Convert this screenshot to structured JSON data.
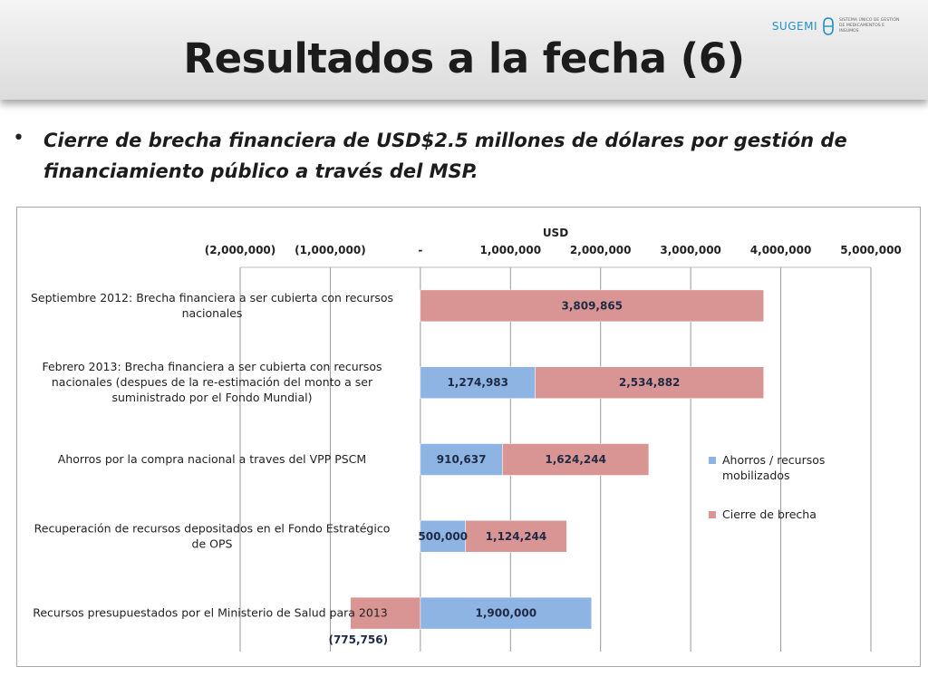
{
  "slide": {
    "title": "Resultados a la fecha (6)",
    "bullet": "Cierre de brecha financiera de USD$2.5 millones de dólares por gestión de financiamiento público a través del MSP."
  },
  "logo": {
    "name": "SUGEMI",
    "tagline": "SISTEMA ÚNICO DE GESTIÓN DE MEDICAMENTOS E INSUMOS",
    "color": "#1e90c7"
  },
  "chart_data": {
    "type": "bar",
    "orientation": "horizontal",
    "stacked": true,
    "xlabel": "USD",
    "xlim": [
      -2000000,
      5000000
    ],
    "x_ticks": [
      -2000000,
      -1000000,
      0,
      1000000,
      2000000,
      3000000,
      4000000,
      5000000
    ],
    "x_tick_labels": [
      "(2,000,000)",
      "(1,000,000)",
      "-",
      "1,000,000",
      "2,000,000",
      "3,000,000",
      "4,000,000",
      "5,000,000"
    ],
    "grid": true,
    "legend_position": "right",
    "categories": [
      "Septiembre 2012: Brecha financiera a ser cubierta con recursos nacionales",
      "Febrero 2013: Brecha financiera a ser cubierta con recursos nacionales (despues de la re-estimación del monto a ser suministrado por el Fondo Mundial)",
      "Ahorros por la compra nacional a traves del VPP PSCM",
      "Recuperación de recursos depositados en el Fondo Estratégico de OPS",
      "Recursos presupuestados por el Ministerio de Salud para 2013"
    ],
    "series": [
      {
        "name": "Ahorros / recursos mobilizados",
        "color": "#8eb4e3",
        "values": [
          0,
          1274983,
          910637,
          500000,
          1900000
        ],
        "labels": [
          "",
          "1,274,983",
          "910,637",
          "500,000",
          "1,900,000"
        ]
      },
      {
        "name": "Cierre de brecha",
        "color": "#d99594",
        "values": [
          3809865,
          2534882,
          1624244,
          1124244,
          -775756
        ],
        "labels": [
          "3,809,865",
          "2,534,882",
          "1,624,244",
          "1,124,244",
          "(775,756)"
        ]
      }
    ]
  }
}
